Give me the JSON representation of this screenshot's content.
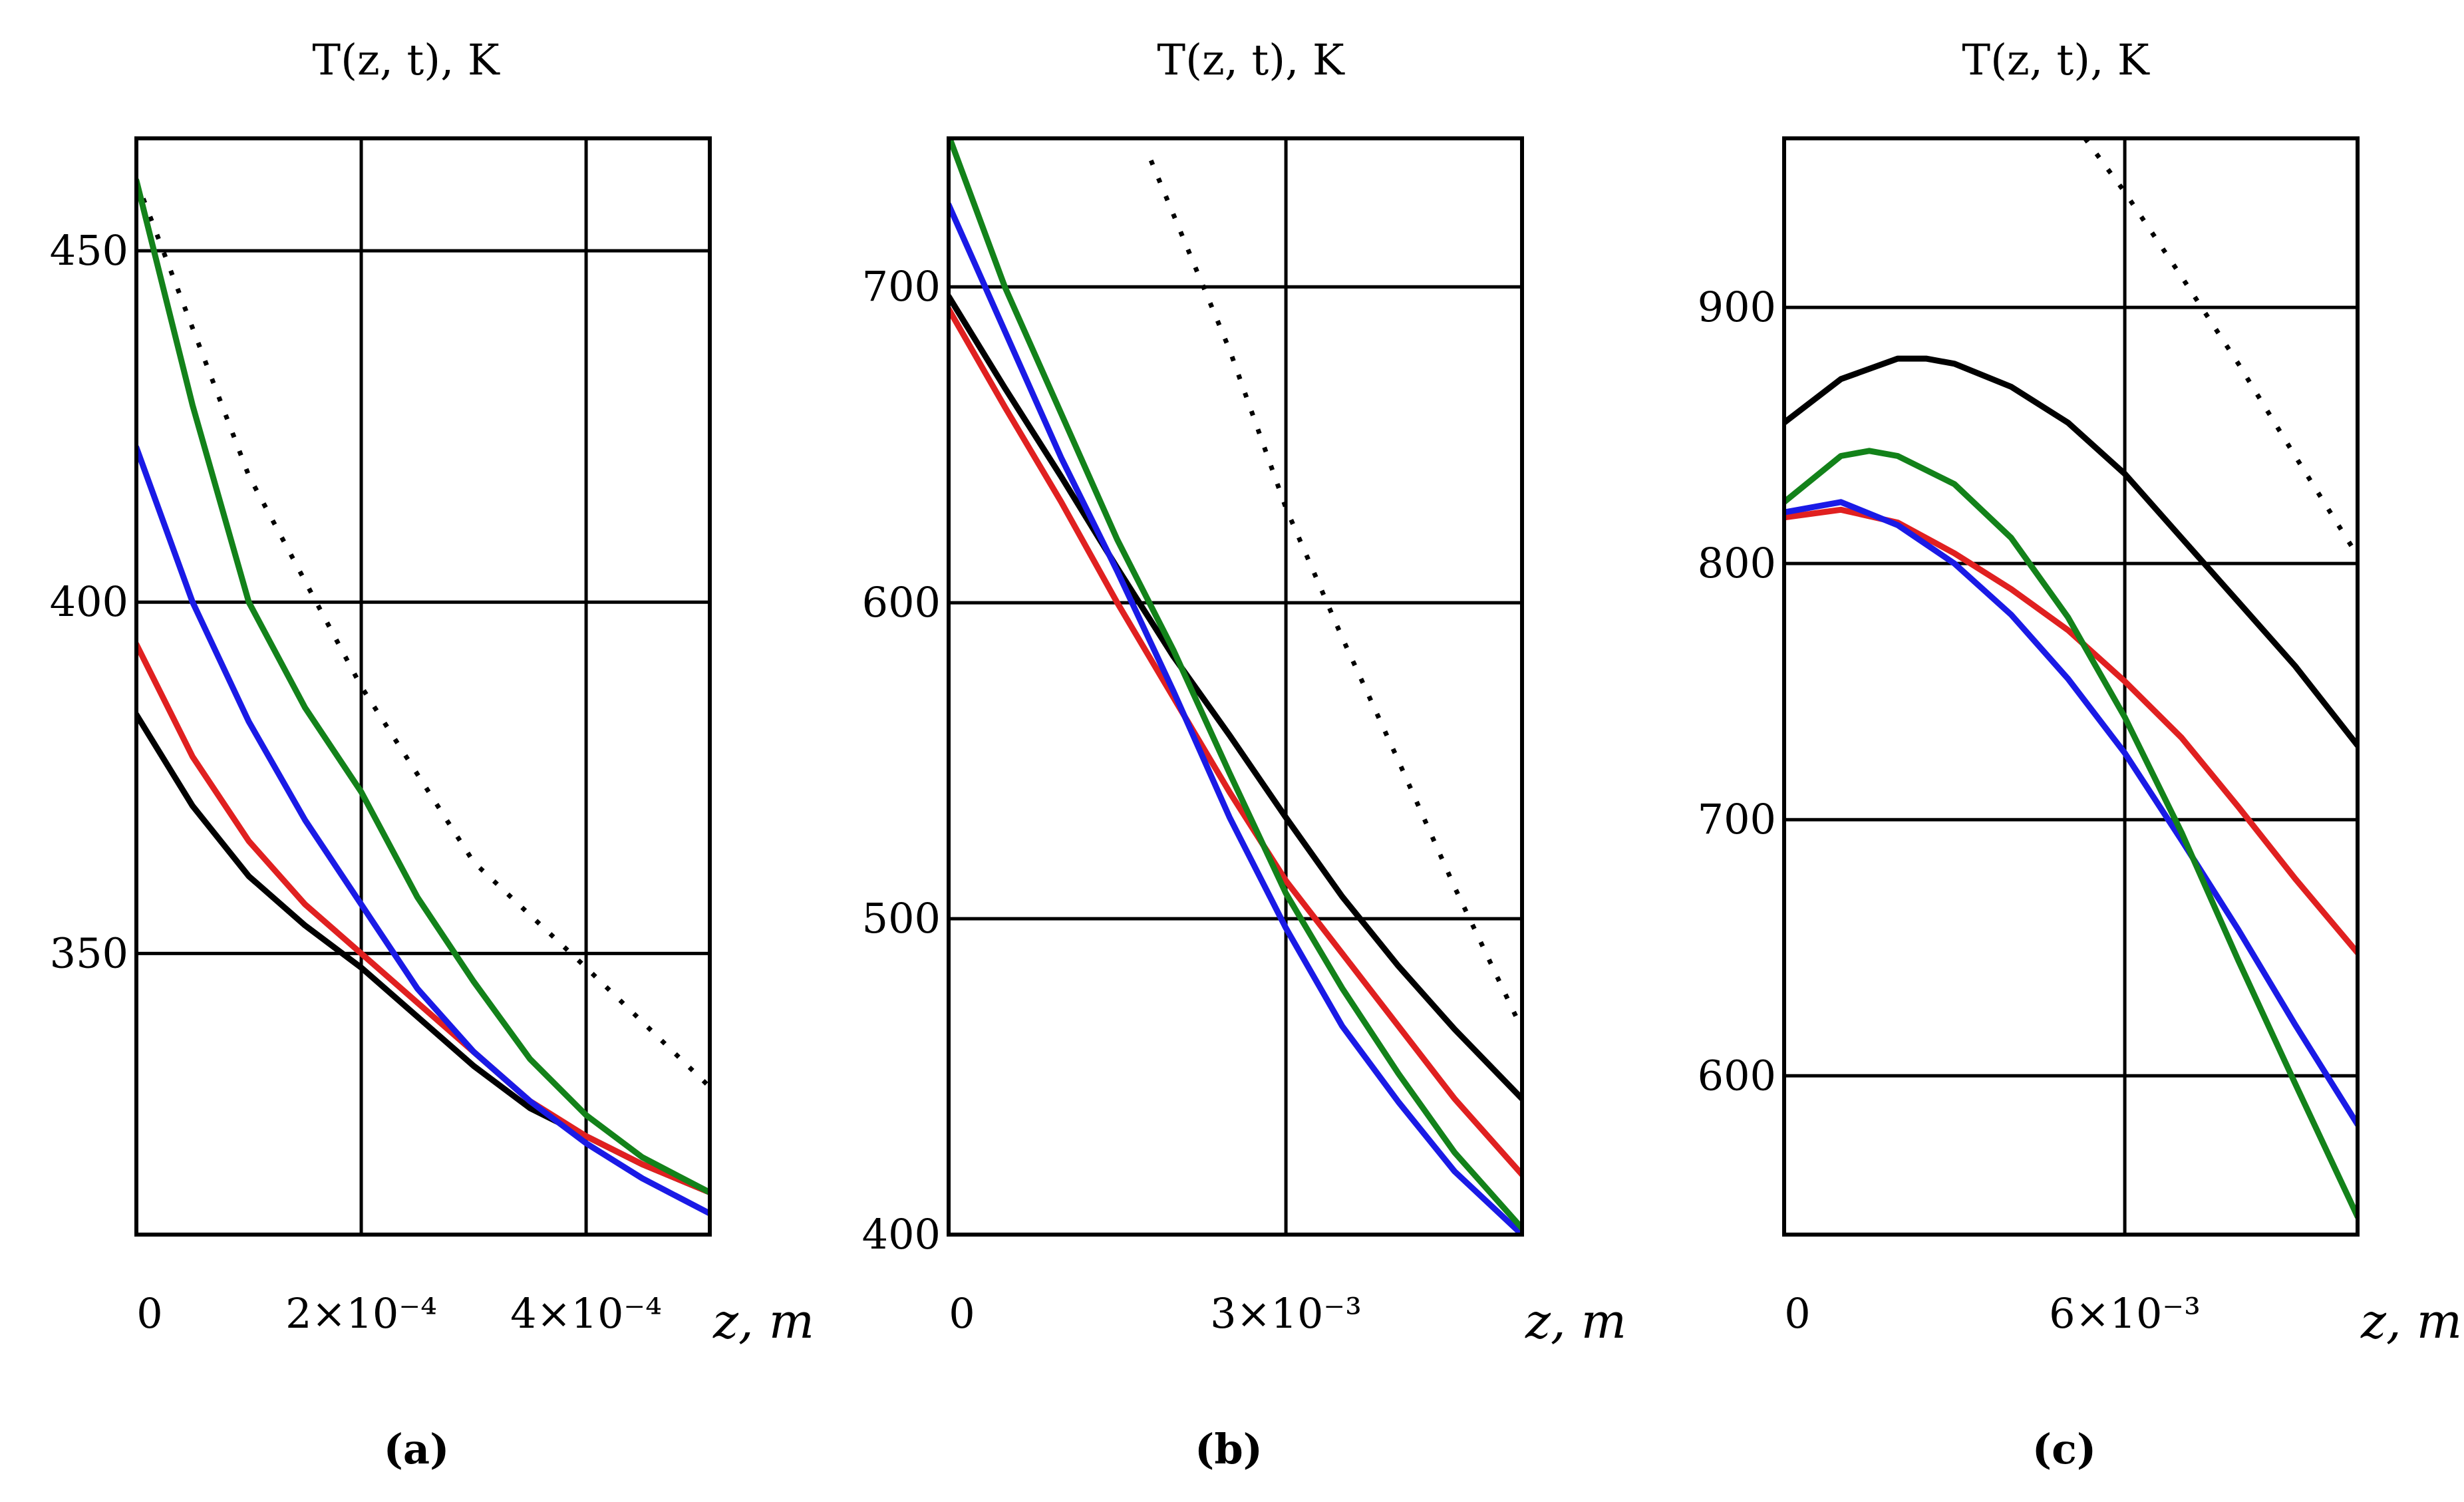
{
  "chart_data": [
    {
      "id": "a",
      "type": "line",
      "panel_label": "(a)",
      "title": "T(z, t), K",
      "xlabel": "z, m",
      "xlim": [
        0,
        0.00051
      ],
      "ylim": [
        310,
        466
      ],
      "x_ticks": [
        {
          "value": 0,
          "label": "0"
        },
        {
          "value": 0.0002,
          "label": "2×10⁻⁴"
        },
        {
          "value": 0.0004,
          "label": "4×10⁻⁴"
        }
      ],
      "y_ticks": [
        {
          "value": 350,
          "label": "350"
        },
        {
          "value": 400,
          "label": "400"
        },
        {
          "value": 450,
          "label": "450"
        }
      ],
      "grid": true,
      "series": [
        {
          "name": "dotted",
          "color": "#000000",
          "dash": "dotted",
          "x": [
            0,
            0.0001,
            0.0002,
            0.0003,
            0.0004,
            0.00051
          ],
          "y": [
            460,
            418,
            388,
            363,
            348,
            331
          ]
        },
        {
          "name": "black",
          "color": "#000000",
          "x": [
            0,
            5e-05,
            0.0001,
            0.00015,
            0.0002,
            0.00025,
            0.0003,
            0.00035,
            0.0004,
            0.00045,
            0.00051
          ],
          "y": [
            384,
            371,
            361,
            354,
            348,
            341,
            334,
            328,
            324,
            320,
            316
          ]
        },
        {
          "name": "red",
          "color": "#e02020",
          "x": [
            0,
            5e-05,
            0.0001,
            0.00015,
            0.0002,
            0.00025,
            0.0003,
            0.00035,
            0.0004,
            0.00045,
            0.00051
          ],
          "y": [
            394,
            378,
            366,
            357,
            350,
            343,
            336,
            329,
            324,
            320,
            316
          ]
        },
        {
          "name": "blue",
          "color": "#1a1ae6",
          "x": [
            0,
            5e-05,
            0.0001,
            0.00015,
            0.0002,
            0.00025,
            0.0003,
            0.00035,
            0.0004,
            0.00045,
            0.00051
          ],
          "y": [
            422,
            400,
            383,
            369,
            357,
            345,
            336,
            329,
            323,
            318,
            313
          ]
        },
        {
          "name": "green",
          "color": "#13821a",
          "x": [
            0,
            5e-05,
            0.0001,
            0.00015,
            0.0002,
            0.00025,
            0.0003,
            0.00035,
            0.0004,
            0.00045,
            0.00051
          ],
          "y": [
            460,
            428,
            400,
            385,
            373,
            358,
            346,
            335,
            327,
            321,
            316
          ]
        }
      ]
    },
    {
      "id": "b",
      "type": "line",
      "panel_label": "(b)",
      "title": "T(z, t), K",
      "xlabel": "z, m",
      "xlim": [
        0,
        0.0051
      ],
      "ylim": [
        400,
        747
      ],
      "x_ticks": [
        {
          "value": 0,
          "label": "0"
        },
        {
          "value": 0.003,
          "label": "3×10⁻³"
        }
      ],
      "y_ticks": [
        {
          "value": 400,
          "label": "400"
        },
        {
          "value": 500,
          "label": "500"
        },
        {
          "value": 600,
          "label": "600"
        },
        {
          "value": 700,
          "label": "700"
        }
      ],
      "grid": true,
      "series": [
        {
          "name": "dotted",
          "color": "#000000",
          "dash": "dotted",
          "x": [
            0.0018,
            0.0025,
            0.003,
            0.0035,
            0.004,
            0.0045,
            0.0051
          ],
          "y": [
            740,
            680,
            630,
            589,
            550,
            510,
            465
          ]
        },
        {
          "name": "black",
          "color": "#000000",
          "x": [
            0,
            0.0005,
            0.001,
            0.0015,
            0.002,
            0.0025,
            0.003,
            0.0035,
            0.004,
            0.0045,
            0.0051
          ],
          "y": [
            697,
            668,
            640,
            611,
            583,
            558,
            532,
            507,
            485,
            465,
            443
          ]
        },
        {
          "name": "red",
          "color": "#e02020",
          "x": [
            0,
            0.0005,
            0.001,
            0.0015,
            0.002,
            0.0025,
            0.003,
            0.0035,
            0.004,
            0.0045,
            0.0051
          ],
          "y": [
            693,
            662,
            632,
            600,
            570,
            540,
            512,
            489,
            466,
            443,
            419
          ]
        },
        {
          "name": "blue",
          "color": "#1a1ae6",
          "x": [
            0,
            0.0005,
            0.001,
            0.0015,
            0.002,
            0.0025,
            0.003,
            0.0035,
            0.004,
            0.0045,
            0.0051
          ],
          "y": [
            726,
            686,
            646,
            610,
            572,
            532,
            497,
            466,
            442,
            420,
            400
          ]
        },
        {
          "name": "green",
          "color": "#13821a",
          "x": [
            0,
            0.0005,
            0.001,
            0.0015,
            0.002,
            0.0025,
            0.003,
            0.0035,
            0.004,
            0.0045,
            0.0051
          ],
          "y": [
            748,
            700,
            660,
            620,
            585,
            546,
            508,
            478,
            451,
            426,
            402
          ]
        }
      ]
    },
    {
      "id": "c",
      "type": "line",
      "panel_label": "(c)",
      "title": "T(z, t), K",
      "xlabel": "z, m",
      "xlim": [
        0,
        0.0101
      ],
      "ylim": [
        538,
        966
      ],
      "x_ticks": [
        {
          "value": 0,
          "label": "0"
        },
        {
          "value": 0.006,
          "label": "6×10⁻³"
        }
      ],
      "y_ticks": [
        {
          "value": 600,
          "label": "600"
        },
        {
          "value": 700,
          "label": "700"
        },
        {
          "value": 800,
          "label": "800"
        },
        {
          "value": 900,
          "label": "900"
        }
      ],
      "grid": true,
      "series": [
        {
          "name": "dotted",
          "color": "#000000",
          "dash": "dotted",
          "x": [
            0.0053,
            0.006,
            0.007,
            0.008,
            0.009,
            0.0101
          ],
          "y": [
            966,
            945,
            912,
            878,
            842,
            803
          ]
        },
        {
          "name": "black",
          "color": "#000000",
          "x": [
            0,
            0.001,
            0.002,
            0.0025,
            0.003,
            0.004,
            0.005,
            0.006,
            0.007,
            0.008,
            0.009,
            0.0101
          ],
          "y": [
            855,
            872,
            880,
            880,
            878,
            869,
            855,
            835,
            810,
            785,
            760,
            729
          ]
        },
        {
          "name": "red",
          "color": "#e02020",
          "x": [
            0,
            0.001,
            0.002,
            0.003,
            0.004,
            0.005,
            0.006,
            0.007,
            0.008,
            0.009,
            0.0101
          ],
          "y": [
            818,
            821,
            816,
            804,
            790,
            774,
            754,
            732,
            705,
            677,
            648
          ]
        },
        {
          "name": "blue",
          "color": "#1a1ae6",
          "x": [
            0,
            0.001,
            0.002,
            0.003,
            0.004,
            0.005,
            0.006,
            0.007,
            0.008,
            0.009,
            0.0101
          ],
          "y": [
            820,
            824,
            815,
            800,
            780,
            755,
            726,
            692,
            657,
            620,
            581
          ]
        },
        {
          "name": "green",
          "color": "#13821a",
          "x": [
            0,
            0.001,
            0.0015,
            0.002,
            0.003,
            0.004,
            0.005,
            0.006,
            0.007,
            0.008,
            0.009,
            0.0101
          ],
          "y": [
            824,
            842,
            844,
            842,
            831,
            810,
            779,
            740,
            695,
            645,
            597,
            545
          ]
        }
      ]
    }
  ]
}
